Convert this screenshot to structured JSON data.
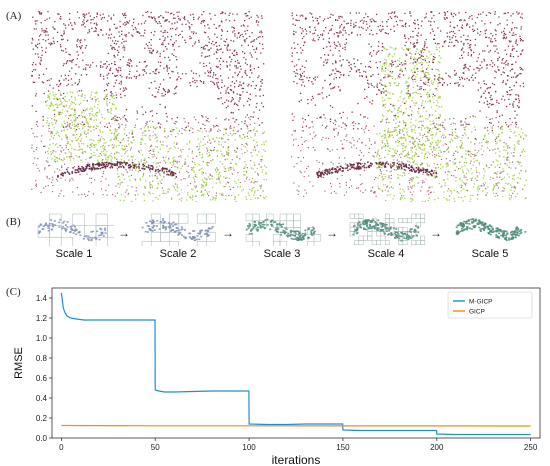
{
  "panels": {
    "a": "(A)",
    "b": "(B)",
    "c": "(C)"
  },
  "colors": {
    "cloud_a": "#8b3a57",
    "cloud_b": "#9acd32",
    "voxel": "#8fa3a0",
    "voxel_fill": "#7e8fb4",
    "mgicp": "#1f8fd6",
    "gicp": "#f28c1b"
  },
  "scales": [
    "Scale 1",
    "Scale 2",
    "Scale 3",
    "Scale 4",
    "Scale 5"
  ],
  "chart_data": {
    "type": "line",
    "xlabel": "iterations",
    "ylabel": "RMSE",
    "xlim": [
      -5,
      255
    ],
    "ylim": [
      0,
      1.5
    ],
    "xticks": [
      0,
      50,
      100,
      150,
      200,
      250
    ],
    "yticks": [
      0.0,
      0.2,
      0.4,
      0.6,
      0.8,
      1.0,
      1.2,
      1.4
    ],
    "legend_position": "top-right",
    "grid": false,
    "series": [
      {
        "name": "M-GICP",
        "x": [
          0,
          1,
          2,
          3,
          5,
          8,
          12,
          18,
          25,
          35,
          49.9,
          50,
          52,
          55,
          60,
          70,
          80,
          90,
          99.9,
          100,
          110,
          120,
          130,
          140,
          149.9,
          150,
          160,
          170,
          180,
          190,
          199.9,
          200,
          210,
          220,
          230,
          240,
          250
        ],
        "y": [
          1.45,
          1.3,
          1.25,
          1.22,
          1.2,
          1.19,
          1.18,
          1.18,
          1.18,
          1.18,
          1.18,
          0.48,
          0.47,
          0.46,
          0.46,
          0.465,
          0.47,
          0.47,
          0.47,
          0.14,
          0.135,
          0.135,
          0.14,
          0.14,
          0.14,
          0.08,
          0.075,
          0.075,
          0.075,
          0.075,
          0.075,
          0.04,
          0.035,
          0.035,
          0.035,
          0.035,
          0.035
        ]
      },
      {
        "name": "GICP",
        "x": [
          0,
          50,
          100,
          150,
          200,
          250
        ],
        "y": [
          0.125,
          0.122,
          0.122,
          0.121,
          0.121,
          0.12
        ]
      }
    ]
  }
}
